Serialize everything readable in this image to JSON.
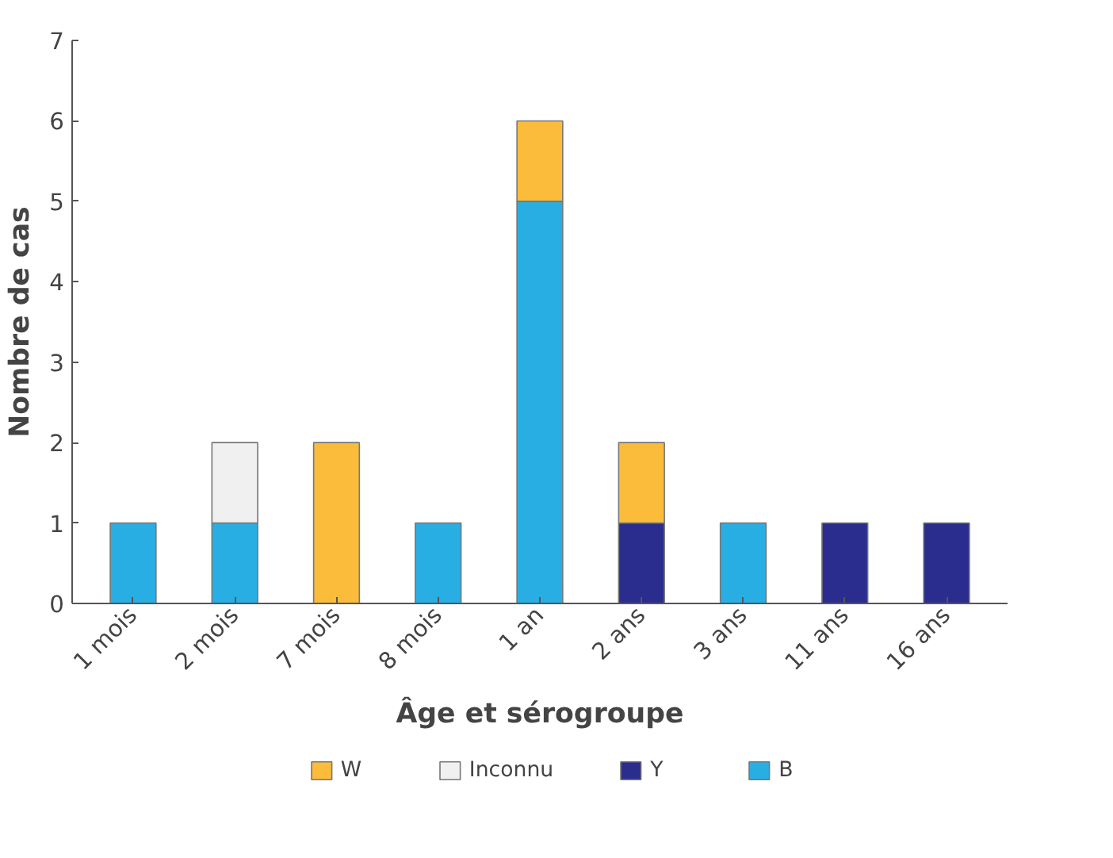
{
  "chart_data": {
    "type": "bar",
    "stacked": true,
    "xlabel": "Âge et sérogroupe",
    "ylabel": "Nombre de cas",
    "categories": [
      "1 mois",
      "2 mois",
      "7 mois",
      "8 mois",
      "1 an",
      "2 ans",
      "3 ans",
      "11 ans",
      "16 ans"
    ],
    "series": [
      {
        "name": "B",
        "color": "#29aee3",
        "values": [
          1,
          1,
          null,
          1,
          5,
          null,
          1,
          null,
          null
        ]
      },
      {
        "name": "Y",
        "color": "#2b2d8e",
        "values": [
          null,
          null,
          null,
          null,
          null,
          1,
          null,
          1,
          1
        ]
      },
      {
        "name": "Inconnu",
        "color": "#f0f0f0",
        "values": [
          null,
          1,
          null,
          null,
          null,
          null,
          null,
          null,
          null
        ]
      },
      {
        "name": "W",
        "color": "#fbbc3c",
        "values": [
          null,
          null,
          2,
          null,
          1,
          1,
          null,
          null,
          null
        ]
      }
    ],
    "ylim": [
      0,
      7
    ],
    "yticks": [
      0,
      1,
      2,
      3,
      4,
      5,
      6,
      7
    ],
    "grid": false,
    "legend": "bottom"
  }
}
